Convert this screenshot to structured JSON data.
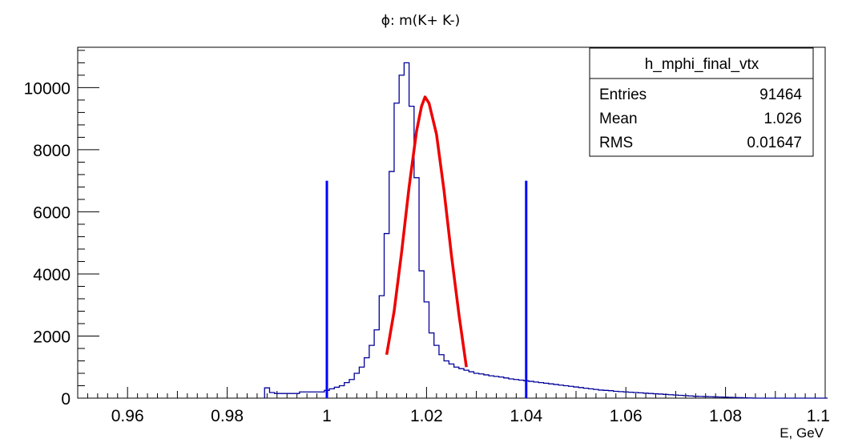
{
  "chart_data": {
    "type": "histogram",
    "title": "ϕ: m(K+ K-)",
    "xlabel": "E, GeV",
    "ylabel": "",
    "xlim": [
      0.95,
      1.1
    ],
    "ylim": [
      0,
      11300
    ],
    "x_ticks": [
      0.96,
      0.98,
      1.0,
      1.02,
      1.04,
      1.06,
      1.08,
      1.1
    ],
    "x_tick_labels": [
      "0.96",
      "0.98",
      "1",
      "1.02",
      "1.04",
      "1.06",
      "1.08",
      "1.1"
    ],
    "y_ticks": [
      0,
      2000,
      4000,
      6000,
      8000,
      10000
    ],
    "y_tick_labels": [
      "0",
      "2000",
      "4000",
      "6000",
      "8000",
      "10000"
    ],
    "grid": false,
    "series": [
      {
        "name": "h_mphi_final_vtx",
        "kind": "step-histogram",
        "color": "#000099",
        "bin_edges_start": 0.9875,
        "bin_width": 0.001,
        "values": [
          330,
          180,
          150,
          150,
          150,
          150,
          150,
          200,
          200,
          200,
          200,
          200,
          250,
          300,
          350,
          400,
          500,
          600,
          800,
          1000,
          1300,
          1700,
          2200,
          3300,
          5300,
          7300,
          9500,
          10400,
          10800,
          9400,
          7100,
          4100,
          3100,
          2100,
          1700,
          1400,
          1200,
          1100,
          1000,
          950,
          900,
          850,
          800,
          780,
          750,
          720,
          700,
          680,
          650,
          620,
          600,
          580,
          560,
          540,
          520,
          500,
          480,
          460,
          440,
          420,
          400,
          380,
          360,
          340,
          320,
          300,
          280,
          260,
          250,
          240,
          220,
          210,
          200,
          190,
          180,
          170,
          160,
          150,
          140,
          130,
          120,
          110,
          100,
          90,
          80,
          70,
          60,
          55,
          50,
          45,
          40,
          35,
          30,
          25,
          20,
          15,
          10,
          5,
          0,
          0,
          0,
          0,
          0,
          0,
          0,
          0,
          0,
          0,
          0,
          0,
          0,
          0,
          0
        ]
      },
      {
        "name": "gaussian-fit",
        "kind": "line",
        "color": "#ee0000",
        "x": [
          1.012,
          1.0135,
          1.015,
          1.0165,
          1.018,
          1.019,
          1.0197,
          1.0205,
          1.022,
          1.0235,
          1.025,
          1.0265,
          1.028
        ],
        "y": [
          1400,
          2800,
          4700,
          6800,
          8600,
          9400,
          9700,
          9500,
          8500,
          6700,
          4600,
          2700,
          1000
        ]
      },
      {
        "name": "cut-lines",
        "kind": "vlines",
        "color": "#0000ff",
        "x": [
          1.0,
          1.04
        ],
        "y_top": 7000
      }
    ],
    "stats_box": {
      "title": "h_mphi_final_vtx",
      "rows": [
        {
          "label": "Entries",
          "value": "91464"
        },
        {
          "label": "Mean",
          "value": "1.026"
        },
        {
          "label": "RMS",
          "value": "0.01647"
        }
      ]
    },
    "legend_position": "top-right"
  }
}
